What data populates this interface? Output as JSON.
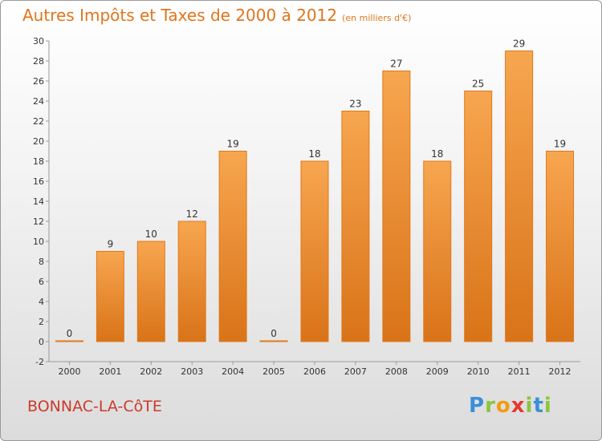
{
  "title": "Autres Impôts et Taxes de 2000 à 2012",
  "unit": "(en milliers d'€)",
  "location": "BONNAC-LA-CôTE",
  "brand": [
    "P",
    "r",
    "o",
    "x",
    "i",
    "t",
    "i"
  ],
  "brand_colors": [
    "#3a8fd9",
    "#8bc53f",
    "#f39c12",
    "#e33b2f",
    "#8bc53f",
    "#3a8fd9",
    "#8bc53f"
  ],
  "colors": {
    "bar_light": "#f7a650",
    "bar_dark": "#d97318",
    "bar_stroke": "#e0781c",
    "axis": "#999999"
  },
  "chart_data": {
    "type": "bar",
    "categories": [
      "2000",
      "2001",
      "2002",
      "2003",
      "2004",
      "2005",
      "2006",
      "2007",
      "2008",
      "2009",
      "2010",
      "2011",
      "2012"
    ],
    "values": [
      0,
      9,
      10,
      12,
      19,
      0,
      18,
      23,
      27,
      18,
      25,
      29,
      19
    ],
    "ylim": [
      -2,
      30
    ],
    "yticks": [
      -2,
      0,
      2,
      4,
      6,
      8,
      10,
      12,
      14,
      16,
      18,
      20,
      22,
      24,
      26,
      28,
      30
    ],
    "grid": false,
    "xlabel": "",
    "ylabel": ""
  }
}
